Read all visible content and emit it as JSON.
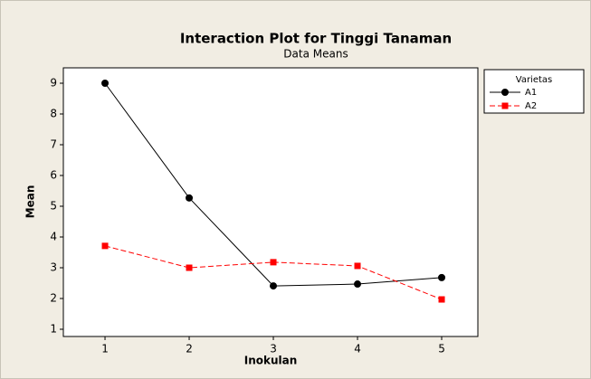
{
  "chart_data": {
    "type": "line",
    "title": "Interaction Plot for Tinggi Tanaman",
    "subtitle": "Data Means",
    "x_label": "Inokulan",
    "y_label": "Mean",
    "x": [
      1,
      2,
      3,
      4,
      5
    ],
    "series": [
      {
        "name": "A1",
        "color": "#000000",
        "line_style": "solid",
        "marker": "circle",
        "values": [
          9.0,
          5.27,
          2.41,
          2.47,
          2.68
        ]
      },
      {
        "name": "A2",
        "color": "#ff0000",
        "line_style": "dashed",
        "marker": "square",
        "values": [
          3.71,
          3.0,
          3.18,
          3.06,
          1.97
        ]
      }
    ],
    "xlim": [
      0.505,
      5.43
    ],
    "xticks": [
      1,
      2,
      3,
      4,
      5
    ],
    "ylim": [
      0.765,
      9.5
    ],
    "yticks": [
      1,
      2,
      3,
      4,
      5,
      6,
      7,
      8,
      9
    ],
    "legend_title": "Varietas",
    "legend": "right"
  }
}
